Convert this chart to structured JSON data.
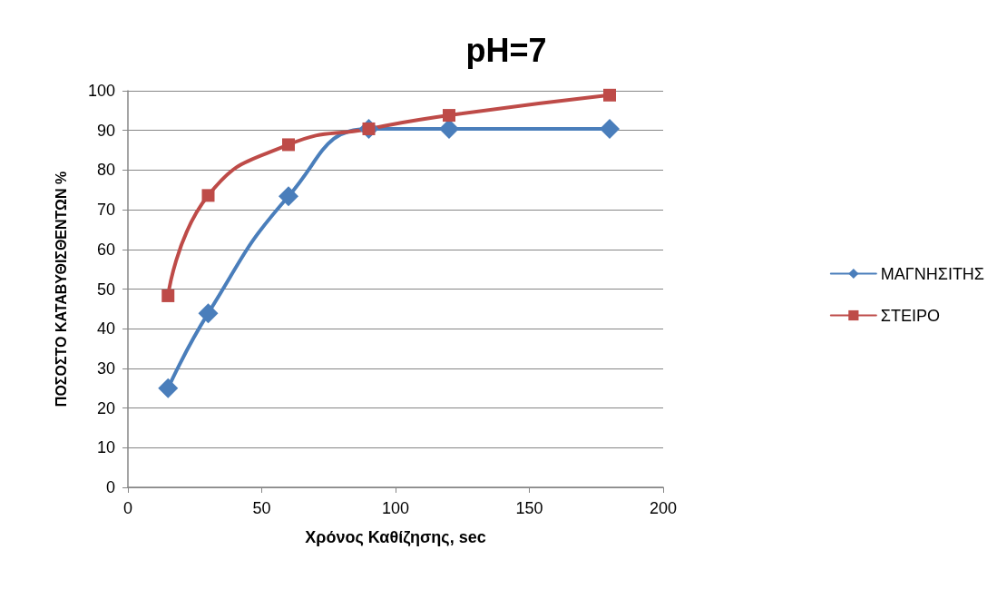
{
  "chart_data": {
    "type": "line",
    "title": "pH=7",
    "xlabel": "Χρόνος Καθίζησης, sec",
    "ylabel": "ΠΟΣΟΣΤΟ ΚΑΤΑΒΥΘΙΣΘΕΝΤΩΝ %",
    "x": [
      15,
      30,
      60,
      90,
      120,
      180
    ],
    "series": [
      {
        "name": "ΜΑΓΝΗΣΙΤΗΣ",
        "color": "#4a7ebb",
        "marker": "diamond",
        "values": [
          25,
          43.9,
          73.4,
          90.4,
          90.4,
          90.4
        ]
      },
      {
        "name": "ΣΤΕΙΡΟ",
        "color": "#be4b48",
        "marker": "square",
        "values": [
          48.3,
          73.6,
          86.4,
          90.4,
          93.8,
          98.9
        ]
      }
    ],
    "xlim": [
      0,
      200
    ],
    "xticks": [
      0,
      50,
      100,
      150,
      200
    ],
    "ylim": [
      0,
      100
    ],
    "yticks": [
      0,
      10,
      20,
      30,
      40,
      50,
      60,
      70,
      80,
      90,
      100
    ],
    "grid": "y",
    "legend": "right",
    "line_style": "solid"
  }
}
